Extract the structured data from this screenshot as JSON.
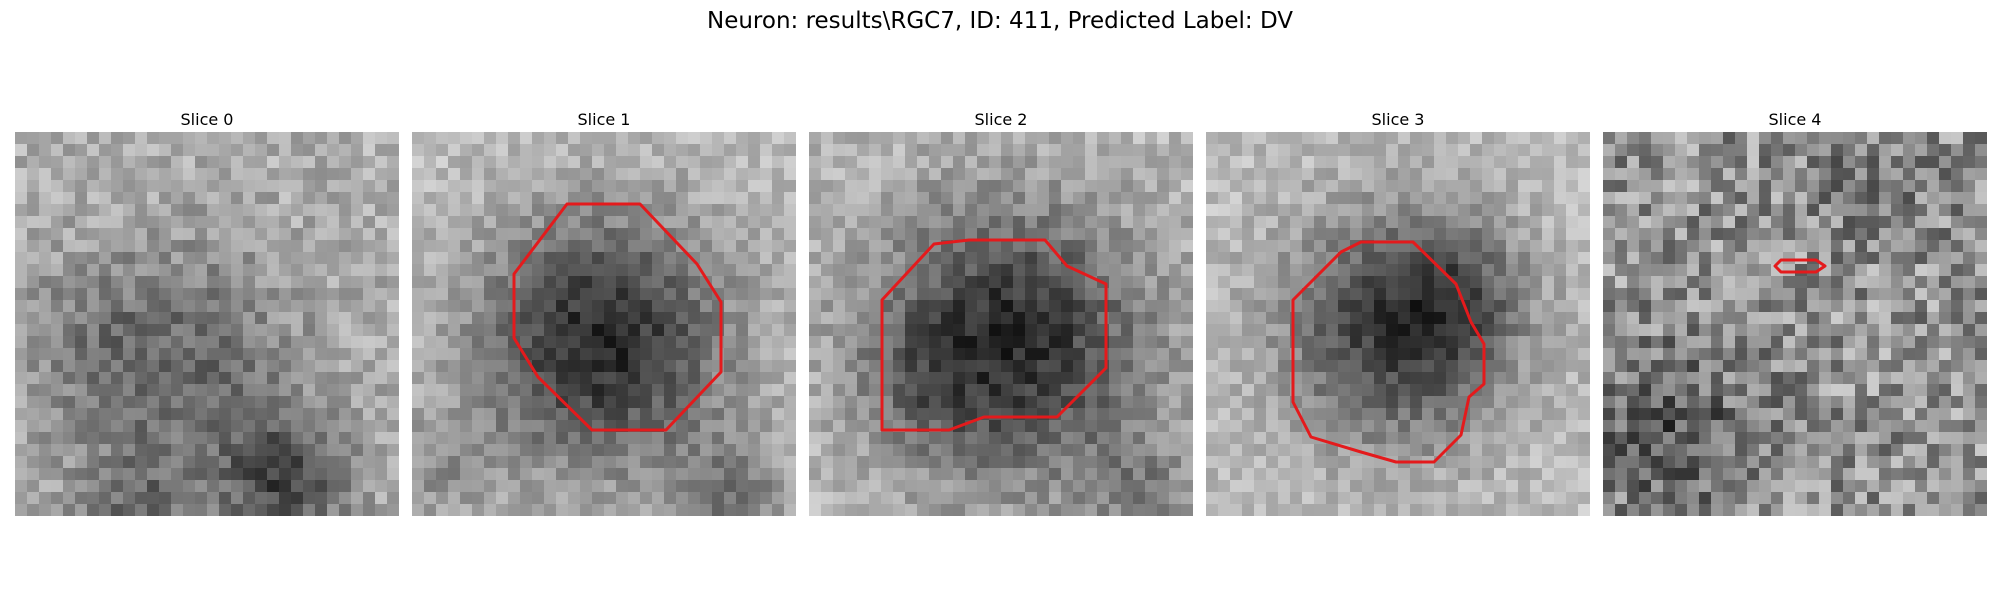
{
  "figure": {
    "title": "Neuron: results\\RGC7, ID: 411, Predicted Label: DV"
  },
  "slices": [
    {
      "title": "Slice 0"
    },
    {
      "title": "Slice 1"
    },
    {
      "title": "Slice 2"
    },
    {
      "title": "Slice 3"
    },
    {
      "title": "Slice 4"
    }
  ],
  "colors": {
    "contour": "#e41a1c",
    "background": "#ffffff"
  }
}
